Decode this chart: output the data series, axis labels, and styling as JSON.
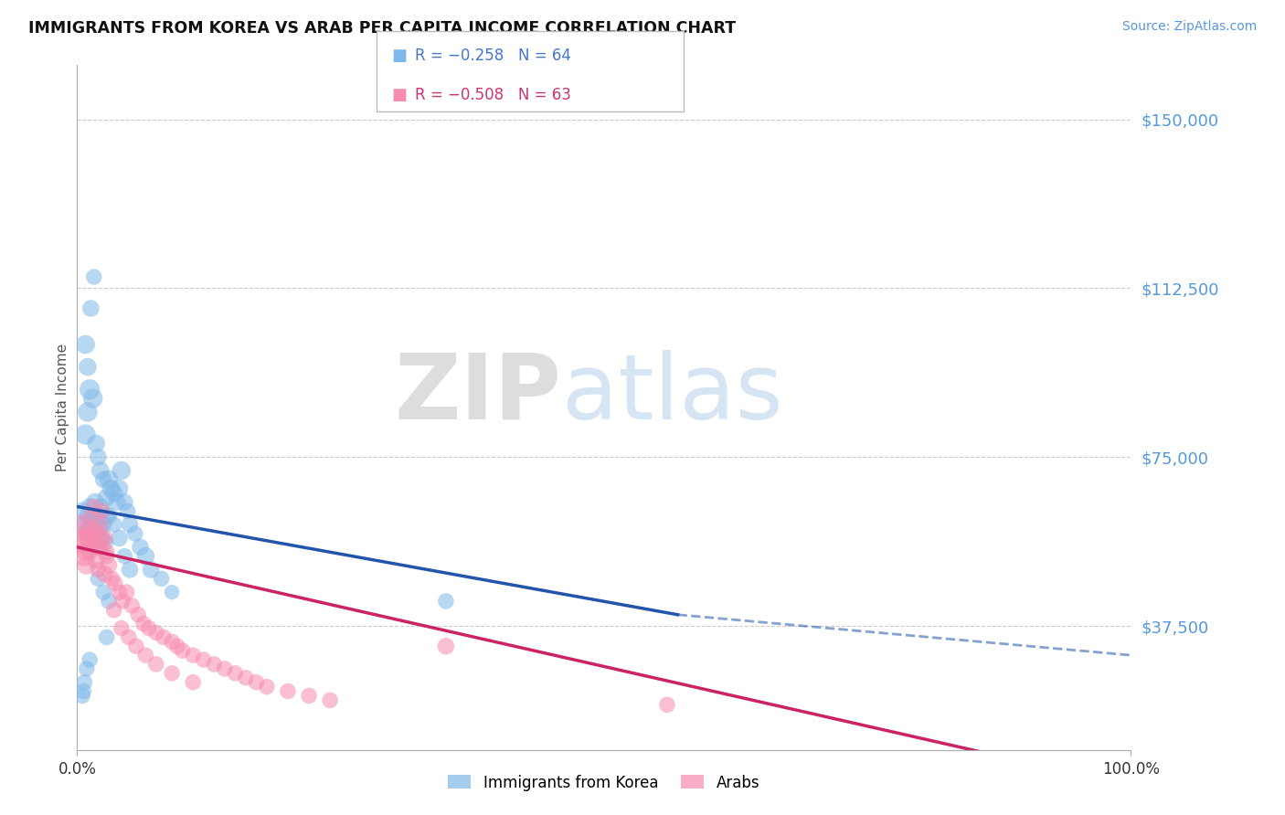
{
  "title": "IMMIGRANTS FROM KOREA VS ARAB PER CAPITA INCOME CORRELATION CHART",
  "source": "Source: ZipAtlas.com",
  "ylabel": "Per Capita Income",
  "yticks": [
    0,
    37500,
    75000,
    112500,
    150000
  ],
  "ytick_labels": [
    "",
    "$37,500",
    "$75,000",
    "$112,500",
    "$150,000"
  ],
  "xlim": [
    0,
    1.0
  ],
  "ylim": [
    10000,
    162000
  ],
  "xtick_labels": [
    "0.0%",
    "100.0%"
  ],
  "background_color": "#ffffff",
  "grid_color": "#cccccc",
  "korea_color": "#7fb8e8",
  "arab_color": "#f78bb0",
  "korea_label": "Immigrants from Korea",
  "arab_label": "Arabs",
  "watermark_zip": "ZIP",
  "watermark_atlas": "atlas",
  "korea_line_color": "#2255aa",
  "arab_line_color": "#cc2266",
  "korea_line_x0": 0.0,
  "korea_line_x1": 0.57,
  "korea_line_x2": 1.0,
  "korea_line_y0": 64000,
  "korea_line_y1": 40000,
  "korea_line_y2": 31000,
  "arab_line_y0": 55000,
  "arab_line_y1": 2000,
  "korea_scatter_x": [
    0.005,
    0.007,
    0.009,
    0.01,
    0.011,
    0.012,
    0.013,
    0.014,
    0.015,
    0.016,
    0.017,
    0.018,
    0.019,
    0.02,
    0.021,
    0.022,
    0.023,
    0.024,
    0.025,
    0.027,
    0.028,
    0.03,
    0.032,
    0.035,
    0.038,
    0.04,
    0.042,
    0.045,
    0.048,
    0.05,
    0.055,
    0.06,
    0.065,
    0.07,
    0.08,
    0.09,
    0.008,
    0.01,
    0.012,
    0.015,
    0.018,
    0.02,
    0.022,
    0.025,
    0.028,
    0.03,
    0.035,
    0.04,
    0.045,
    0.05,
    0.008,
    0.01,
    0.013,
    0.016,
    0.02,
    0.025,
    0.03,
    0.35,
    0.028,
    0.012,
    0.009,
    0.007,
    0.006,
    0.005
  ],
  "korea_scatter_y": [
    63000,
    60000,
    58000,
    62000,
    59000,
    64000,
    61000,
    60000,
    58000,
    62000,
    65000,
    59000,
    60000,
    55000,
    62000,
    59000,
    64000,
    57000,
    60000,
    56000,
    62000,
    70000,
    68000,
    67000,
    65000,
    68000,
    72000,
    65000,
    63000,
    60000,
    58000,
    55000,
    53000,
    50000,
    48000,
    45000,
    80000,
    85000,
    90000,
    88000,
    78000,
    75000,
    72000,
    70000,
    66000,
    62000,
    60000,
    57000,
    53000,
    50000,
    100000,
    95000,
    108000,
    115000,
    48000,
    45000,
    43000,
    43000,
    35000,
    30000,
    28000,
    25000,
    23000,
    22000
  ],
  "korea_scatter_size": [
    200,
    180,
    160,
    180,
    160,
    180,
    160,
    180,
    160,
    180,
    200,
    160,
    180,
    160,
    180,
    160,
    180,
    160,
    180,
    160,
    180,
    220,
    200,
    200,
    180,
    200,
    220,
    180,
    160,
    180,
    160,
    180,
    200,
    180,
    160,
    140,
    260,
    240,
    260,
    240,
    200,
    180,
    200,
    180,
    200,
    180,
    160,
    180,
    160,
    180,
    220,
    200,
    180,
    160,
    160,
    160,
    160,
    160,
    160,
    160,
    160,
    160,
    160,
    160
  ],
  "arab_scatter_x": [
    0.005,
    0.007,
    0.009,
    0.01,
    0.012,
    0.014,
    0.015,
    0.017,
    0.018,
    0.02,
    0.022,
    0.024,
    0.026,
    0.028,
    0.03,
    0.033,
    0.036,
    0.04,
    0.043,
    0.047,
    0.052,
    0.058,
    0.063,
    0.068,
    0.075,
    0.082,
    0.09,
    0.095,
    0.1,
    0.11,
    0.12,
    0.13,
    0.14,
    0.15,
    0.16,
    0.17,
    0.18,
    0.2,
    0.22,
    0.24,
    0.004,
    0.006,
    0.008,
    0.01,
    0.012,
    0.014,
    0.016,
    0.018,
    0.02,
    0.022,
    0.024,
    0.026,
    0.028,
    0.035,
    0.042,
    0.049,
    0.056,
    0.065,
    0.075,
    0.09,
    0.11,
    0.35,
    0.56
  ],
  "arab_scatter_y": [
    56000,
    53000,
    51000,
    57000,
    54000,
    58000,
    56000,
    59000,
    52000,
    50000,
    55000,
    57000,
    49000,
    53000,
    51000,
    48000,
    47000,
    45000,
    43000,
    45000,
    42000,
    40000,
    38000,
    37000,
    36000,
    35000,
    34000,
    33000,
    32000,
    31000,
    30000,
    29000,
    28000,
    27000,
    26000,
    25000,
    24000,
    23000,
    22000,
    21000,
    60000,
    57000,
    54000,
    59000,
    56000,
    62000,
    64000,
    58000,
    55000,
    60000,
    63000,
    57000,
    54000,
    41000,
    37000,
    35000,
    33000,
    31000,
    29000,
    27000,
    25000,
    33000,
    20000
  ],
  "arab_scatter_size": [
    300,
    260,
    220,
    200,
    180,
    160,
    180,
    160,
    180,
    160,
    180,
    160,
    180,
    160,
    180,
    160,
    160,
    160,
    160,
    160,
    160,
    160,
    160,
    160,
    160,
    160,
    160,
    160,
    160,
    160,
    160,
    160,
    160,
    160,
    160,
    160,
    160,
    160,
    160,
    160,
    260,
    220,
    200,
    220,
    200,
    180,
    160,
    180,
    160,
    180,
    160,
    180,
    160,
    160,
    160,
    160,
    160,
    160,
    160,
    160,
    160,
    180,
    160
  ]
}
